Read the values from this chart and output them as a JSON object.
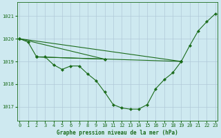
{
  "title": "Graphe pression niveau de la mer (hPa)",
  "background_color": "#cee9f0",
  "grid_color": "#b0c8d8",
  "line_color": "#1a6b1a",
  "marker_color": "#1a6b1a",
  "x_ticks": [
    0,
    1,
    2,
    3,
    4,
    5,
    6,
    7,
    8,
    9,
    10,
    11,
    12,
    13,
    14,
    15,
    16,
    17,
    18,
    19,
    20,
    21,
    22,
    23
  ],
  "y_ticks": [
    1017,
    1018,
    1019,
    1020,
    1021
  ],
  "ylim": [
    1016.4,
    1021.6
  ],
  "xlim": [
    -0.3,
    23.3
  ],
  "main_series": [
    1020.0,
    1019.85,
    1019.2,
    1019.2,
    1018.85,
    1018.65,
    1018.8,
    1018.8,
    1018.45,
    1018.15,
    1017.65,
    1017.1,
    1016.95,
    1016.9,
    1016.9,
    1017.1,
    1017.8,
    1018.2,
    1018.5,
    1019.0,
    1019.7,
    1020.35,
    1020.75,
    1021.1
  ],
  "straight_lines": [
    {
      "x": [
        0,
        10
      ],
      "y": [
        1020.0,
        1019.1
      ],
      "has_markers": [
        true,
        true
      ]
    },
    {
      "x": [
        0,
        19
      ],
      "y": [
        1020.0,
        1019.0
      ],
      "has_markers": [
        true,
        true
      ]
    },
    {
      "x": [
        2,
        10
      ],
      "y": [
        1019.2,
        1019.1
      ],
      "has_markers": [
        true,
        true
      ]
    },
    {
      "x": [
        2,
        19
      ],
      "y": [
        1019.2,
        1019.0
      ],
      "has_markers": [
        true,
        true
      ]
    }
  ],
  "title_fontsize": 5.5,
  "tick_fontsize": 5,
  "linewidth": 0.8,
  "markersize": 2.2
}
